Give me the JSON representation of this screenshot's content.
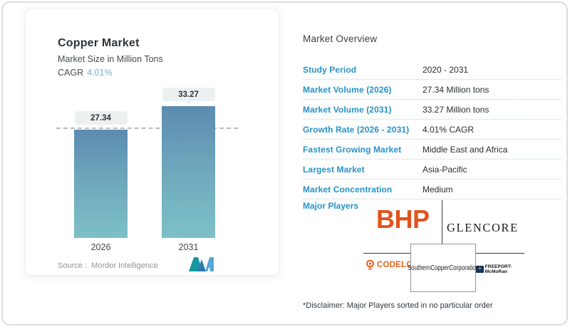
{
  "chart_data": {
    "type": "bar",
    "title": "Copper Market",
    "subtitle": "Market Size in Million Tons",
    "cagr_label": "CAGR",
    "cagr_value": "4.01%",
    "categories": [
      "2026",
      "2031"
    ],
    "values": [
      27.34,
      33.27
    ],
    "value_labels": [
      "27.34",
      "33.27"
    ],
    "ylim": [
      0,
      33.27
    ],
    "dashed_reference_value": 27.34,
    "legend": "none",
    "bar_gradient_top": "#5b8cb0",
    "bar_gradient_bottom": "#7dc0c6"
  },
  "chart_card": {
    "source_label": "Source :",
    "source_value": "Mordor Intelligence"
  },
  "overview": {
    "heading": "Market Overview",
    "rows": [
      {
        "label": "Study Period",
        "value": "2020 - 2031"
      },
      {
        "label": "Market Volume (2026)",
        "value": "27.34 Million tons"
      },
      {
        "label": "Market Volume (2031)",
        "value": "33.27 Million tons"
      },
      {
        "label": "Growth Rate (2026 - 2031)",
        "value": "4.01% CAGR"
      },
      {
        "label": "Fastest Growing Market",
        "value": "Middle East and Africa"
      },
      {
        "label": "Largest Market",
        "value": "Asia-Pacific"
      },
      {
        "label": "Market Concentration",
        "value": "Medium"
      }
    ],
    "major_players_label": "Major Players",
    "players": [
      "BHP",
      "GLENCORE",
      "CODELCO",
      "SouthernCopperCorporation",
      "FREEPORT-McMoRan"
    ],
    "disclaimer": "*Disclaimer: Major Players sorted in no particular order"
  },
  "colors": {
    "label_blue": "#2792c7",
    "cagr_teal": "#74b5c5",
    "bhp_orange": "#e2531b",
    "codelco_orange": "#e4641c",
    "frame_border": "#dadde1"
  }
}
